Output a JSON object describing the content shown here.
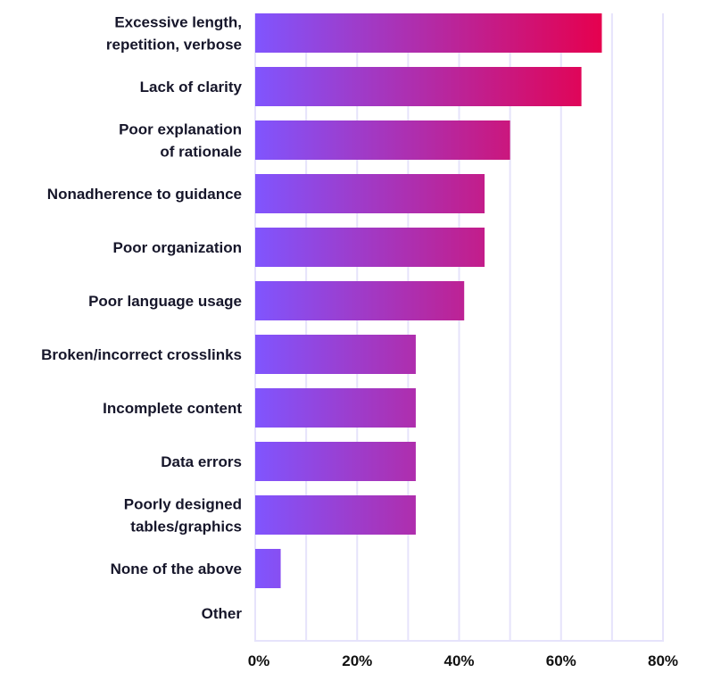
{
  "chart_data": {
    "type": "bar",
    "orientation": "horizontal",
    "title": "",
    "xlabel": "",
    "ylabel": "",
    "categories": [
      [
        "Excessive length,",
        "repetition, verbose"
      ],
      [
        "Lack of clarity"
      ],
      [
        "Poor explanation",
        "of rationale"
      ],
      [
        "Nonadherence to guidance"
      ],
      [
        "Poor organization"
      ],
      [
        "Poor language usage"
      ],
      [
        "Broken/incorrect crosslinks"
      ],
      [
        "Incomplete content"
      ],
      [
        "Data errors"
      ],
      [
        "Poorly designed",
        "tables/graphics"
      ],
      [
        "None of the above"
      ],
      [
        "Other"
      ]
    ],
    "values": [
      68,
      64,
      50,
      45,
      45,
      41,
      31.5,
      31.5,
      31.5,
      31.5,
      5,
      0
    ],
    "xlim": [
      0,
      80
    ],
    "xticks": [
      0,
      20,
      40,
      60,
      80
    ],
    "xtick_labels": [
      "0%",
      "20%",
      "40%",
      "60%",
      "80%"
    ],
    "grid_step": 10,
    "grid": true,
    "colors": {
      "gradient_start": "#8055fe",
      "gradient_end": "#e6004e",
      "grid": "#e6e3fb",
      "text": "#16162a"
    }
  }
}
